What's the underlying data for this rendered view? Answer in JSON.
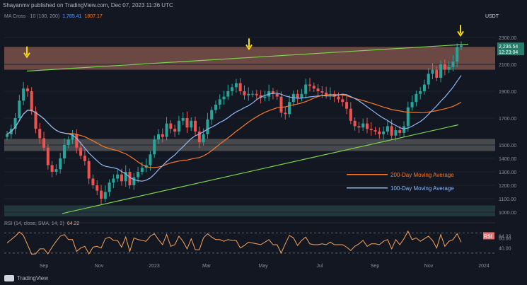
{
  "header": {
    "publish_line": "Shayanmv published on TradingView.com, Dec 07, 2023 11:36 UTC",
    "indicator": "MA Cross · 10 (100, 200)",
    "ma100_value": "1,785.41",
    "ma200_value": "1807.17",
    "currency": "USDT"
  },
  "price_labels": {
    "current": "2,236.54",
    "timer": "12:23:04"
  },
  "chart_data": {
    "type": "candlestick",
    "yticks": [
      2300,
      2100,
      1900,
      1700,
      1500,
      1400,
      1300,
      1200,
      1100,
      1000
    ],
    "ytick_labels": [
      "2300.00",
      "2100.00",
      "1900.00",
      "1700.00",
      "1500.00",
      "1400.00",
      "1300.00",
      "1200.00",
      "1100.00",
      "1000.00"
    ],
    "xlabels": [
      "Sep",
      "Nov",
      "2023",
      "Mar",
      "May",
      "Jul",
      "Sep",
      "Nov",
      "2024"
    ],
    "series": [
      {
        "name": "200-Day Moving Average",
        "color": "#f7782a"
      },
      {
        "name": "100-Day Moving Average",
        "color": "#8fb8f5"
      }
    ],
    "close_approx": [
      1580,
      1620,
      1700,
      1830,
      1920,
      1900,
      1750,
      1620,
      1550,
      1480,
      1350,
      1300,
      1320,
      1400,
      1500,
      1540,
      1580,
      1480,
      1420,
      1380,
      1250,
      1200,
      1160,
      1100,
      1150,
      1220,
      1250,
      1280,
      1230,
      1300,
      1200,
      1260,
      1300,
      1330,
      1350,
      1430,
      1540,
      1580,
      1560,
      1660,
      1620,
      1600,
      1680,
      1700,
      1630,
      1680,
      1600,
      1520,
      1580,
      1690,
      1760,
      1800,
      1840,
      1860,
      1900,
      1930,
      1960,
      1900,
      1870,
      1880,
      1880,
      1870,
      1850,
      1860,
      1900,
      1880,
      1860,
      1740,
      1730,
      1820,
      1880,
      1850,
      1880,
      1950,
      1940,
      1920,
      1900,
      1890,
      1870,
      1880,
      1860,
      1840,
      1820,
      1770,
      1680,
      1640,
      1630,
      1660,
      1620,
      1610,
      1600,
      1580,
      1600,
      1640,
      1570,
      1610,
      1590,
      1640,
      1780,
      1820,
      1880,
      1900,
      1950,
      2030,
      2060,
      2000,
      2100,
      2060,
      2080,
      2120,
      2230,
      2240
    ],
    "rsi": {
      "label": "RSI (14, close, SMA, 14, 2)",
      "value": "64.22",
      "levels": [
        70,
        50,
        30
      ],
      "level_labels": [
        "60.00",
        "40.00"
      ]
    }
  },
  "ma_labels": {
    "ma200": "200-Day Moving Average",
    "ma100": "100-Day Moving Average"
  },
  "footer": {
    "brand": "TradingView"
  },
  "colors": {
    "background": "#131722",
    "up": "#26a69a",
    "down": "#ef5350",
    "resistance_zone": "#8a5a50",
    "support_zone": "#6b6b6b",
    "bottom_zone": "#2f4f4f",
    "trendline": "#7cd34c",
    "arrow": "#f5d90a",
    "ma200": "#f7782a",
    "ma100": "#8fb8f5",
    "rsi_line": "#f7a35c"
  }
}
